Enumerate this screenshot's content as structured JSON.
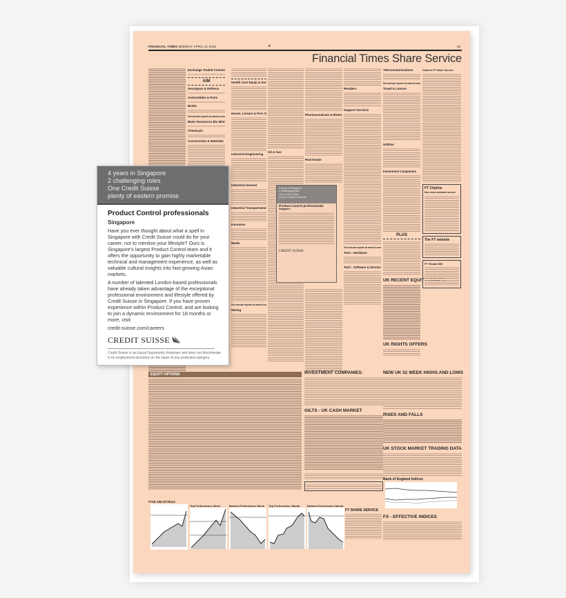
{
  "newspaper": {
    "masthead": "FINANCIAL TIMES",
    "date": "MONDAY APRIL 12 2010",
    "page_number": "25",
    "title": "Financial Times Share Service",
    "paper_color": "#fbd7be",
    "sections": {
      "c2": [
        "Exchange Traded Commodities",
        "AIM",
        "Aerospace & Defence",
        "Automobiles & Parts",
        "Banks",
        "Get annual reports at www.ft.com/ir",
        "Basic Resources (Ex Mining)",
        "Chemicals",
        "Construction & Materials"
      ],
      "c3": [
        "Health Care Equip & Services",
        "House, Leisure & Pers Goods",
        "Industrial Engineering",
        "Industrial General",
        "Industrial Transportation",
        "Insurance",
        "Media",
        "Get annual reports at www.ft.com/ir",
        "Mining"
      ],
      "c4": [
        "Oil & Gas"
      ],
      "c5": [
        "Pharmaceuticals & Biotech",
        "Real Estate"
      ],
      "c6": [
        "Retailers",
        "Support Services",
        "Get annual reports at www.ft.com/ir",
        "Tech - Hardware",
        "Tech - Software & Services"
      ],
      "c7": [
        "Telecommunications",
        "Get annual reports at www.ft.com/ir",
        "Travel & Leisure",
        "Utilities",
        "Investment Companies",
        "PLUS",
        "UK RECENT EQUITY ISSUES",
        "UK RIGHTS OFFERS"
      ],
      "c8": [
        "Guide to FT Share Service",
        "FT Cityline",
        "New voice-activated service",
        "The FT website",
        "FT Global 500"
      ]
    },
    "bottom": {
      "equity_options": "EQUITY OPTIONS",
      "investment_companies": "INVESTMENT COMPANIES:",
      "gilts": "GILTS - UK CASH MARKET",
      "highs_lows": "NEW UK 52 WEEK HIGHS AND LOWS",
      "rises_falls": "RISES AND FALLS",
      "trading_data": "UK STOCK MARKET TRADING DATA",
      "boe": "Bank of England Indices",
      "fx": "FX - EFFECTIVE INDICES",
      "share_service": "FT SHARE SERVICE",
      "charts": [
        "FTSE AIM All-Share",
        "Top Performance Week",
        "Bottom Performance Week",
        "Top Performance Month",
        "Bottom Performance Month"
      ]
    }
  },
  "ad": {
    "headline_lines": [
      "4 years in Singapore",
      "2 challenging roles",
      "One Credit Suisse",
      "plenty of eastern promise"
    ],
    "title": "Product Control professionals",
    "location": "Singapore",
    "paragraph1": "Have you ever thought about what a spell in Singapore with Credit Suisse could do for your career, not to mention your lifestyle? Ours is Singapore's largest Product Control team and it offers the opportunity to gain highly marketable technical and management experience, as well as valuable cultural insights into fast-growing Asian markets.",
    "paragraph2": "A number of talented London-based professionals have already taken advantage of the exceptional professional environment and lifestyle offered by Credit Suisse in Singapore. If you have proven experience within Product Control, and are looking to join a dynamic environment for 18 months or more, visit:",
    "url": "credit-suisse.com/careers",
    "logo": "CREDIT SUISSE",
    "disclaimer": "Credit Suisse is an Equal Opportunity Employer and does not discriminate in its employment decisions on the basis of any protected category.",
    "header_color": "#6d6e70"
  }
}
